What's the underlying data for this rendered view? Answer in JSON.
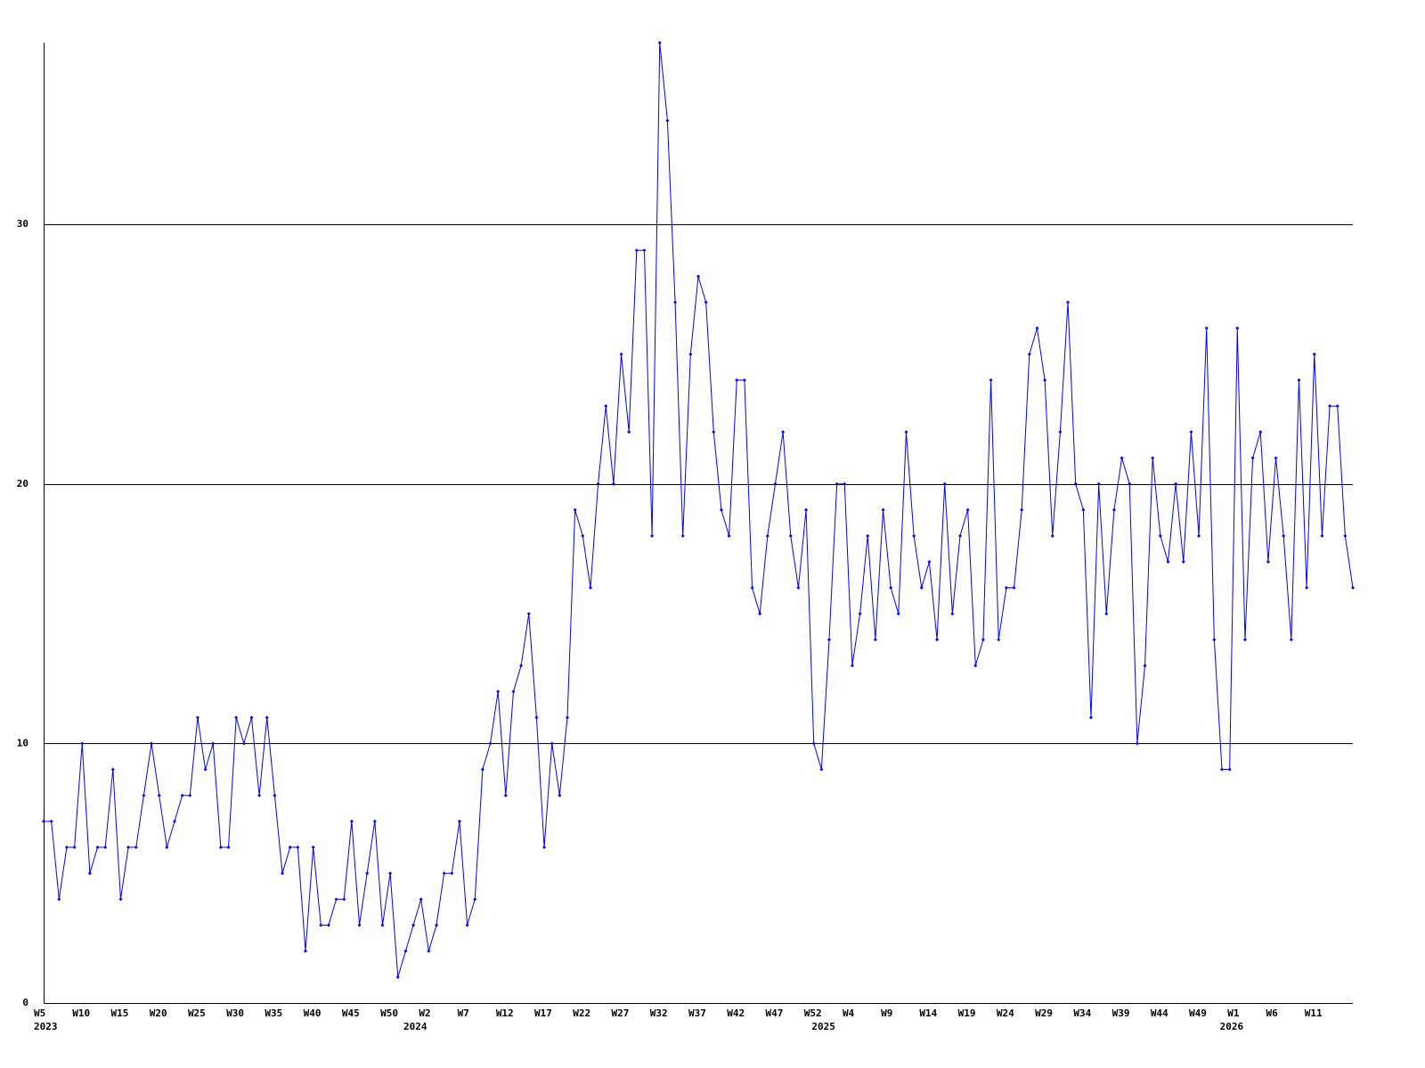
{
  "chart_data": {
    "type": "line",
    "categories": [
      "W5",
      null,
      null,
      null,
      null,
      "W10",
      null,
      null,
      null,
      null,
      "W15",
      null,
      null,
      null,
      null,
      "W20",
      null,
      null,
      null,
      null,
      "W25",
      null,
      null,
      null,
      null,
      "W30",
      null,
      null,
      null,
      null,
      "W35",
      null,
      null,
      null,
      null,
      "W40",
      null,
      null,
      null,
      null,
      "W45",
      null,
      null,
      null,
      null,
      "W50",
      null,
      null,
      null,
      null,
      "W2",
      null,
      null,
      null,
      null,
      "W7",
      null,
      null,
      null,
      null,
      "W12",
      null,
      null,
      null,
      null,
      "W17",
      null,
      null,
      null,
      null,
      "W22",
      null,
      null,
      null,
      null,
      "W27",
      null,
      null,
      null,
      null,
      "W32",
      null,
      null,
      null,
      null,
      "W37",
      null,
      null,
      null,
      null,
      "W42",
      null,
      null,
      null,
      null,
      "W47",
      null,
      null,
      null,
      null,
      "W52",
      null,
      null,
      null,
      null,
      "W4",
      null,
      null,
      null,
      null,
      "W9",
      null,
      null,
      null,
      null,
      "W14",
      null,
      null,
      null,
      null,
      "W19",
      null,
      null,
      null,
      null,
      "W24",
      null,
      null,
      null,
      null,
      "W29",
      null,
      null,
      null,
      null,
      "W34",
      null,
      null,
      null,
      null,
      "W39",
      null,
      null,
      null,
      null,
      "W44",
      null,
      null,
      null,
      null,
      "W49",
      null,
      null,
      null,
      null,
      "W1",
      null,
      null,
      null,
      null,
      "W6",
      null,
      null,
      null,
      null,
      "W11",
      null,
      null,
      null,
      null,
      null
    ],
    "x_year_ticks": [
      {
        "value": 0,
        "label": "2023"
      },
      {
        "value": 48,
        "label": "2024"
      },
      {
        "value": 101,
        "label": "2025"
      },
      {
        "value": 154,
        "label": "2026"
      }
    ],
    "values": [
      7,
      7,
      4,
      6,
      6,
      10,
      5,
      6,
      6,
      9,
      4,
      6,
      6,
      8,
      10,
      8,
      6,
      7,
      8,
      8,
      11,
      9,
      10,
      6,
      6,
      11,
      10,
      11,
      8,
      11,
      8,
      5,
      6,
      6,
      2,
      6,
      3,
      3,
      4,
      4,
      7,
      3,
      5,
      7,
      3,
      5,
      1,
      2,
      3,
      4,
      2,
      3,
      5,
      5,
      7,
      3,
      4,
      9,
      10,
      12,
      8,
      12,
      13,
      15,
      11,
      6,
      10,
      8,
      11,
      19,
      18,
      16,
      20,
      23,
      20,
      25,
      22,
      29,
      29,
      18,
      37,
      34,
      27,
      18,
      25,
      28,
      27,
      22,
      19,
      18,
      24,
      24,
      16,
      15,
      18,
      20,
      22,
      18,
      16,
      19,
      10,
      9,
      14,
      20,
      20,
      13,
      15,
      18,
      14,
      19,
      16,
      15,
      22,
      18,
      16,
      17,
      14,
      20,
      15,
      18,
      19,
      13,
      14,
      24,
      14,
      16,
      16,
      19,
      25,
      26,
      24,
      18,
      22,
      27,
      20,
      19,
      11,
      20,
      15,
      19,
      21,
      20,
      10,
      13,
      21,
      18,
      17,
      20,
      17,
      22,
      18,
      26,
      14,
      9,
      9,
      26,
      14,
      21,
      22,
      17,
      21,
      18,
      14,
      24,
      16,
      25,
      18,
      23,
      23,
      18,
      16
    ],
    "color": "#0000ff",
    "ylim": [
      0,
      37
    ],
    "yticks": [
      0,
      10,
      20,
      30
    ],
    "grid": true
  }
}
